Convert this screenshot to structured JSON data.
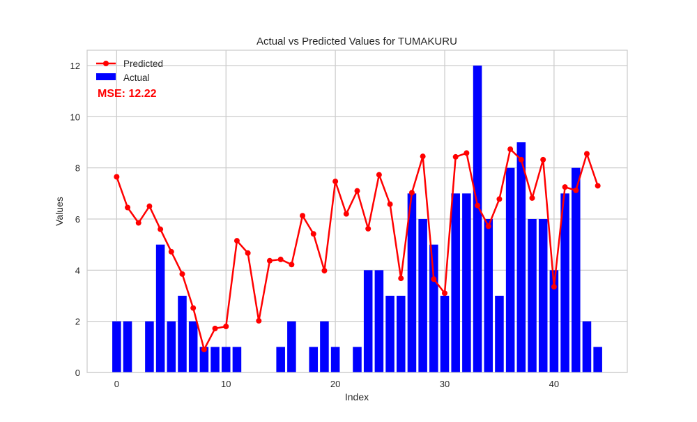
{
  "chart_data": {
    "type": "bar",
    "title": "Actual vs Predicted Values for TUMAKURU",
    "xlabel": "Index",
    "ylabel": "Values",
    "xlim": [
      -2.7,
      46.7
    ],
    "ylim": [
      0,
      12.6
    ],
    "xticks": [
      0,
      10,
      20,
      30,
      40
    ],
    "yticks": [
      0,
      2,
      4,
      6,
      8,
      10,
      12
    ],
    "grid": true,
    "legend_position": "top-left",
    "annotation": "MSE: 12.22",
    "x": [
      0,
      1,
      2,
      3,
      4,
      5,
      6,
      7,
      8,
      9,
      10,
      11,
      12,
      13,
      14,
      15,
      16,
      17,
      18,
      19,
      20,
      21,
      22,
      23,
      24,
      25,
      26,
      27,
      28,
      29,
      30,
      31,
      32,
      33,
      34,
      35,
      36,
      37,
      38,
      39,
      40,
      41,
      42,
      43,
      44
    ],
    "series": [
      {
        "name": "Actual",
        "type": "bar",
        "color": "#0000ff",
        "values": [
          2,
          2,
          0,
          2,
          5,
          2,
          3,
          2,
          1,
          1,
          1,
          1,
          0,
          0,
          0,
          1,
          2,
          0,
          1,
          2,
          1,
          0,
          1,
          4,
          4,
          3,
          3,
          7,
          6,
          5,
          3,
          7,
          7,
          12,
          6,
          3,
          8,
          9,
          6,
          6,
          4,
          7,
          8,
          2,
          1
        ]
      },
      {
        "name": "Predicted",
        "type": "line",
        "color": "#ff0000",
        "values": [
          7.65,
          6.45,
          5.85,
          6.5,
          5.6,
          4.72,
          3.85,
          2.52,
          0.9,
          1.72,
          1.8,
          5.15,
          4.67,
          2.02,
          4.37,
          4.42,
          4.22,
          6.13,
          5.42,
          3.98,
          7.47,
          6.2,
          7.1,
          5.62,
          7.73,
          6.58,
          3.68,
          7.03,
          8.45,
          3.65,
          3.1,
          8.43,
          8.58,
          6.53,
          5.72,
          6.78,
          8.73,
          8.32,
          6.82,
          8.32,
          3.35,
          7.25,
          7.12,
          8.55,
          7.3
        ]
      }
    ]
  }
}
